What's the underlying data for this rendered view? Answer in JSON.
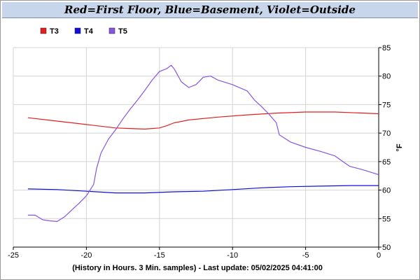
{
  "chart_data": {
    "type": "line",
    "title": "Red=First Floor, Blue=Basement, Violet=Outside",
    "xlabel": "(History in Hours. 3 Min. samples) - Last update: 05/02/2025 04:41:00",
    "ylabel": "°F",
    "xlim": [
      -25,
      0
    ],
    "ylim": [
      50,
      85
    ],
    "x_ticks": [
      "-25",
      "-20",
      "-15",
      "-10",
      "-5",
      "0"
    ],
    "y_ticks": [
      "50",
      "55",
      "60",
      "65",
      "70",
      "75",
      "80",
      "85"
    ],
    "grid": true,
    "legend_position": "top-left",
    "series": [
      {
        "name": "T3",
        "color": "#e02020",
        "points": [
          [
            -24,
            72.7
          ],
          [
            -22,
            72.1
          ],
          [
            -20,
            71.5
          ],
          [
            -18,
            70.9
          ],
          [
            -17,
            70.8
          ],
          [
            -16,
            70.7
          ],
          [
            -15,
            70.9
          ],
          [
            -14.5,
            71.3
          ],
          [
            -14,
            71.8
          ],
          [
            -13,
            72.3
          ],
          [
            -11,
            72.8
          ],
          [
            -9,
            73.2
          ],
          [
            -7,
            73.5
          ],
          [
            -5,
            73.7
          ],
          [
            -3,
            73.7
          ],
          [
            -1,
            73.5
          ],
          [
            0,
            73.4
          ]
        ]
      },
      {
        "name": "T4",
        "color": "#1010d8",
        "points": [
          [
            -24,
            60.2
          ],
          [
            -22,
            60.1
          ],
          [
            -20,
            59.8
          ],
          [
            -18,
            59.5
          ],
          [
            -16,
            59.5
          ],
          [
            -14,
            59.7
          ],
          [
            -12,
            59.8
          ],
          [
            -10,
            60.1
          ],
          [
            -8,
            60.4
          ],
          [
            -6,
            60.6
          ],
          [
            -4,
            60.7
          ],
          [
            -2,
            60.8
          ],
          [
            0,
            60.8
          ]
        ]
      },
      {
        "name": "T5",
        "color": "#8855dd",
        "points": [
          [
            -24,
            55.6
          ],
          [
            -23.5,
            55.6
          ],
          [
            -23,
            54.8
          ],
          [
            -22.5,
            54.6
          ],
          [
            -22,
            54.5
          ],
          [
            -21.5,
            55.3
          ],
          [
            -21,
            56.5
          ],
          [
            -20.5,
            57.7
          ],
          [
            -20,
            59
          ],
          [
            -19.5,
            61
          ],
          [
            -19.3,
            63.8
          ],
          [
            -19,
            66.5
          ],
          [
            -18.5,
            68.9
          ],
          [
            -18,
            70.6
          ],
          [
            -17.5,
            72.5
          ],
          [
            -17,
            74.2
          ],
          [
            -16.5,
            75.8
          ],
          [
            -16,
            77.5
          ],
          [
            -15.5,
            79.3
          ],
          [
            -15,
            80.8
          ],
          [
            -14.5,
            81.3
          ],
          [
            -14.2,
            81.9
          ],
          [
            -14,
            81.3
          ],
          [
            -13.5,
            79
          ],
          [
            -13,
            78
          ],
          [
            -12.5,
            78.5
          ],
          [
            -12,
            79.8
          ],
          [
            -11.5,
            80
          ],
          [
            -11,
            79.3
          ],
          [
            -10,
            78.5
          ],
          [
            -9,
            77.4
          ],
          [
            -8.5,
            75.8
          ],
          [
            -8,
            74.6
          ],
          [
            -7.5,
            73.3
          ],
          [
            -7,
            71.8
          ],
          [
            -6.8,
            69.7
          ],
          [
            -6,
            68.4
          ],
          [
            -5,
            67.5
          ],
          [
            -4,
            66.8
          ],
          [
            -3,
            66
          ],
          [
            -2,
            64.2
          ],
          [
            -1,
            63.5
          ],
          [
            -0.5,
            63.1
          ],
          [
            0,
            62.7
          ]
        ]
      }
    ]
  }
}
